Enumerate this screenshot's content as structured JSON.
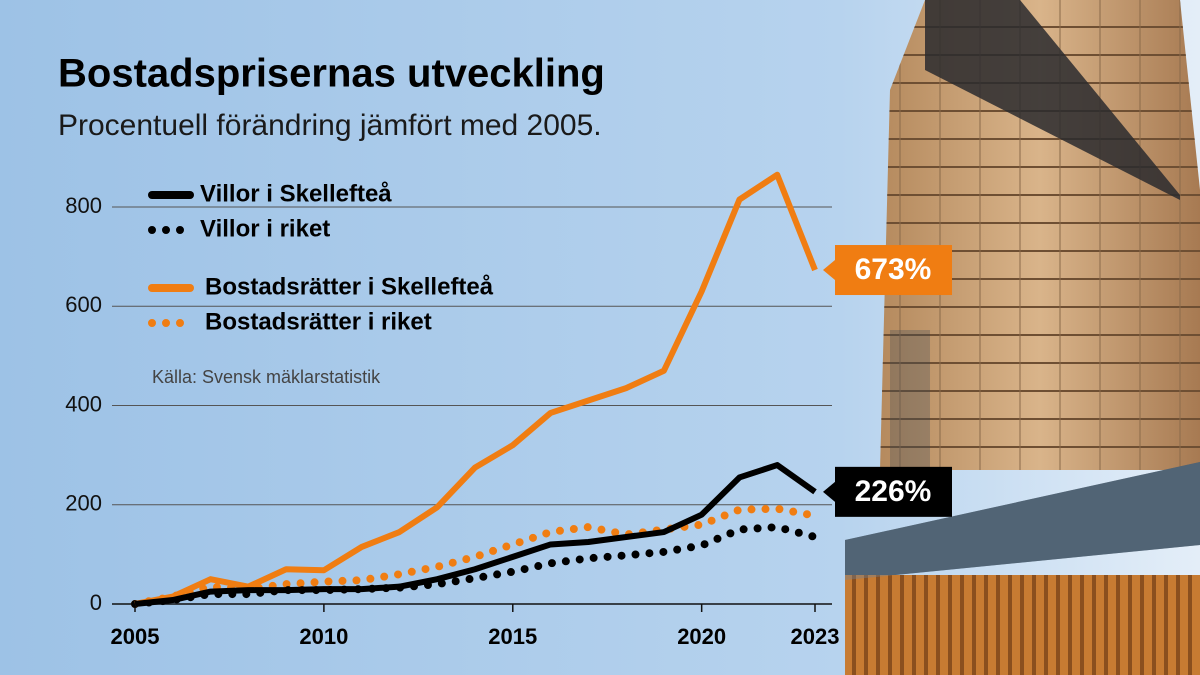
{
  "chart_data": {
    "type": "line",
    "title": "Bostadsprisernas utveckling",
    "subtitle": "Procentuell förändring jämfört med 2005.",
    "source": "Källa: Svensk mäklarstatistik",
    "x": [
      2005,
      2006,
      2007,
      2008,
      2009,
      2010,
      2011,
      2012,
      2013,
      2014,
      2015,
      2016,
      2017,
      2018,
      2019,
      2020,
      2021,
      2022,
      2023
    ],
    "xlim": [
      2005,
      2023
    ],
    "xticks": [
      2005,
      2010,
      2015,
      2020,
      2023
    ],
    "ylim": [
      0,
      800
    ],
    "yticks": [
      0,
      200,
      400,
      600,
      800
    ],
    "grid": true,
    "series": [
      {
        "name": "Villor i Skellefteå",
        "color": "#000000",
        "style": "solid",
        "values": [
          0,
          8,
          25,
          28,
          28,
          30,
          30,
          35,
          50,
          70,
          95,
          120,
          125,
          135,
          145,
          180,
          255,
          280,
          226
        ],
        "value_labels": [
          null,
          null,
          null,
          null,
          null,
          null,
          null,
          null,
          null,
          null,
          null,
          null,
          null,
          null,
          null,
          null,
          null,
          null,
          "226%"
        ]
      },
      {
        "name": "Villor i riket",
        "color": "#000000",
        "style": "dotted",
        "values": [
          0,
          8,
          20,
          20,
          28,
          28,
          30,
          33,
          40,
          52,
          65,
          82,
          92,
          98,
          105,
          118,
          150,
          155,
          135
        ]
      },
      {
        "name": "Bostadsrätter i Skellefteå",
        "color": "#f07d12",
        "style": "solid",
        "values": [
          0,
          15,
          50,
          35,
          70,
          68,
          115,
          145,
          195,
          275,
          320,
          385,
          410,
          435,
          470,
          630,
          815,
          865,
          673
        ],
        "value_labels": [
          null,
          null,
          null,
          null,
          null,
          null,
          null,
          null,
          null,
          null,
          null,
          null,
          null,
          null,
          null,
          null,
          null,
          null,
          "673%"
        ]
      },
      {
        "name": "Bostadsrätter i riket",
        "color": "#f07d12",
        "style": "dotted",
        "values": [
          0,
          15,
          35,
          30,
          40,
          45,
          48,
          60,
          75,
          95,
          120,
          145,
          155,
          140,
          150,
          160,
          190,
          192,
          178
        ]
      }
    ]
  }
}
